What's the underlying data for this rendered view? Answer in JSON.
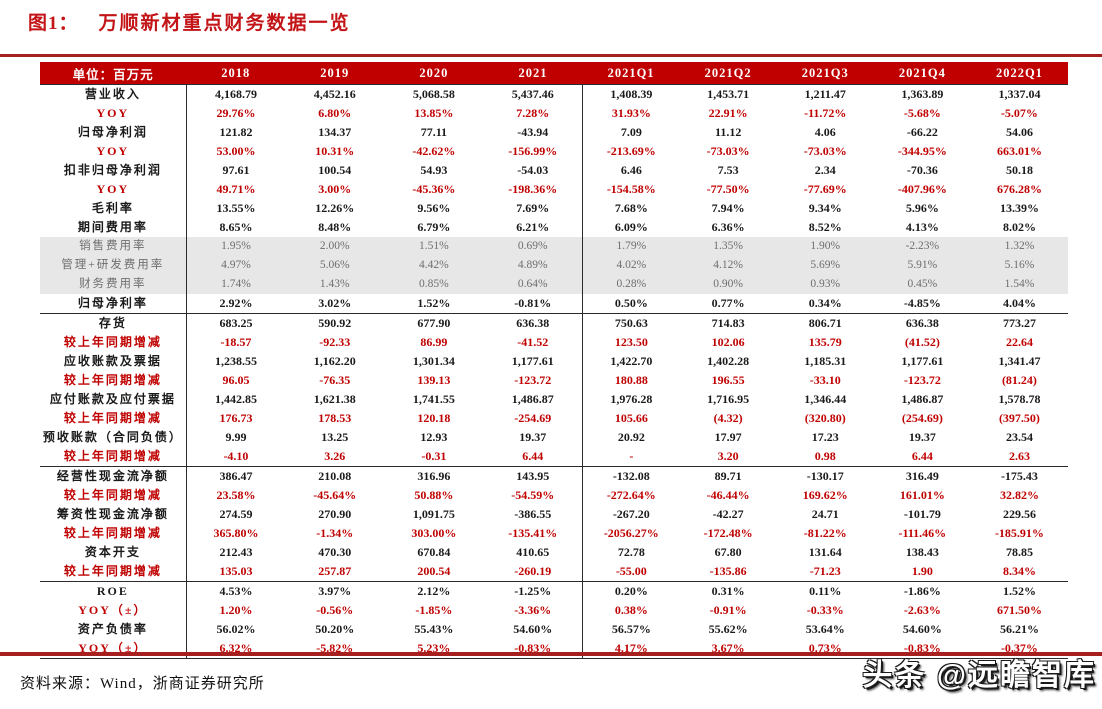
{
  "title": {
    "prefix": "图1：",
    "text": "万顺新材重点财务数据一览"
  },
  "colors": {
    "accent_red": "#c00000",
    "rule_red": "#a6201f",
    "gray_row_bg": "#e7e7e7",
    "gray_text": "#6e6e6e",
    "black_text": "#1a1a1a"
  },
  "table": {
    "unit_label": "单位：百万元",
    "columns": [
      "2018",
      "2019",
      "2020",
      "2021",
      "2021Q1",
      "2021Q2",
      "2021Q3",
      "2021Q4",
      "2022Q1"
    ],
    "rows": [
      {
        "label": "营业收入",
        "style": "black",
        "values": [
          "4,168.79",
          "4,452.16",
          "5,068.58",
          "5,437.46",
          "1,408.39",
          "1,453.71",
          "1,211.47",
          "1,363.89",
          "1,337.04"
        ]
      },
      {
        "label": "YOY",
        "style": "red",
        "values": [
          "29.76%",
          "6.80%",
          "13.85%",
          "7.28%",
          "31.93%",
          "22.91%",
          "-11.72%",
          "-5.68%",
          "-5.07%"
        ]
      },
      {
        "label": "归母净利润",
        "style": "black",
        "values": [
          "121.82",
          "134.37",
          "77.11",
          "-43.94",
          "7.09",
          "11.12",
          "4.06",
          "-66.22",
          "54.06"
        ]
      },
      {
        "label": "YOY",
        "style": "red",
        "values": [
          "53.00%",
          "10.31%",
          "-42.62%",
          "-156.99%",
          "-213.69%",
          "-73.03%",
          "-73.03%",
          "-344.95%",
          "663.01%"
        ]
      },
      {
        "label": "扣非归母净利润",
        "style": "black",
        "values": [
          "97.61",
          "100.54",
          "54.93",
          "-54.03",
          "6.46",
          "7.53",
          "2.34",
          "-70.36",
          "50.18"
        ]
      },
      {
        "label": "YOY",
        "style": "red",
        "values": [
          "49.71%",
          "3.00%",
          "-45.36%",
          "-198.36%",
          "-154.58%",
          "-77.50%",
          "-77.69%",
          "-407.96%",
          "676.28%"
        ]
      },
      {
        "label": "毛利率",
        "style": "black",
        "values": [
          "13.55%",
          "12.26%",
          "9.56%",
          "7.69%",
          "7.68%",
          "7.94%",
          "9.34%",
          "5.96%",
          "13.39%"
        ]
      },
      {
        "label": "期间费用率",
        "style": "black",
        "values": [
          "8.65%",
          "8.48%",
          "6.79%",
          "6.21%",
          "6.09%",
          "6.36%",
          "8.52%",
          "4.13%",
          "8.02%"
        ]
      },
      {
        "label": "销售费用率",
        "style": "gray",
        "values": [
          "1.95%",
          "2.00%",
          "1.51%",
          "0.69%",
          "1.79%",
          "1.35%",
          "1.90%",
          "-2.23%",
          "1.32%"
        ]
      },
      {
        "label": "管理+研发费用率",
        "style": "gray",
        "values": [
          "4.97%",
          "5.06%",
          "4.42%",
          "4.89%",
          "4.02%",
          "4.12%",
          "5.69%",
          "5.91%",
          "5.16%"
        ]
      },
      {
        "label": "财务费用率",
        "style": "gray",
        "values": [
          "1.74%",
          "1.43%",
          "0.85%",
          "0.64%",
          "0.28%",
          "0.90%",
          "0.93%",
          "0.45%",
          "1.54%"
        ]
      },
      {
        "label": "归母净利率",
        "style": "black",
        "sep_after": true,
        "values": [
          "2.92%",
          "3.02%",
          "1.52%",
          "-0.81%",
          "0.50%",
          "0.77%",
          "0.34%",
          "-4.85%",
          "4.04%"
        ]
      },
      {
        "label": "存货",
        "style": "black",
        "values": [
          "683.25",
          "590.92",
          "677.90",
          "636.38",
          "750.63",
          "714.83",
          "806.71",
          "636.38",
          "773.27"
        ]
      },
      {
        "label": "较上年同期增减",
        "style": "red",
        "values": [
          "-18.57",
          "-92.33",
          "86.99",
          "-41.52",
          "123.50",
          "102.06",
          "135.79",
          "(41.52)",
          "22.64"
        ]
      },
      {
        "label": "应收账款及票据",
        "style": "black",
        "values": [
          "1,238.55",
          "1,162.20",
          "1,301.34",
          "1,177.61",
          "1,422.70",
          "1,402.28",
          "1,185.31",
          "1,177.61",
          "1,341.47"
        ]
      },
      {
        "label": "较上年同期增减",
        "style": "red",
        "values": [
          "96.05",
          "-76.35",
          "139.13",
          "-123.72",
          "180.88",
          "196.55",
          "-33.10",
          "-123.72",
          "(81.24)"
        ]
      },
      {
        "label": "应付账款及应付票据",
        "style": "black",
        "values": [
          "1,442.85",
          "1,621.38",
          "1,741.55",
          "1,486.87",
          "1,976.28",
          "1,716.95",
          "1,346.44",
          "1,486.87",
          "1,578.78"
        ]
      },
      {
        "label": "较上年同期增减",
        "style": "red",
        "values": [
          "176.73",
          "178.53",
          "120.18",
          "-254.69",
          "105.66",
          "(4.32)",
          "(320.80)",
          "(254.69)",
          "(397.50)"
        ]
      },
      {
        "label": "预收账款（合同负债）",
        "style": "black",
        "values": [
          "9.99",
          "13.25",
          "12.93",
          "19.37",
          "20.92",
          "17.97",
          "17.23",
          "19.37",
          "23.54"
        ]
      },
      {
        "label": "较上年同期增减",
        "style": "red",
        "sep_after": true,
        "values": [
          "-4.10",
          "3.26",
          "-0.31",
          "6.44",
          "-",
          "3.20",
          "0.98",
          "6.44",
          "2.63"
        ]
      },
      {
        "label": "经营性现金流净额",
        "style": "black",
        "values": [
          "386.47",
          "210.08",
          "316.96",
          "143.95",
          "-132.08",
          "89.71",
          "-130.17",
          "316.49",
          "-175.43"
        ]
      },
      {
        "label": "较上年同期增减",
        "style": "red",
        "values": [
          "23.58%",
          "-45.64%",
          "50.88%",
          "-54.59%",
          "-272.64%",
          "-46.44%",
          "169.62%",
          "161.01%",
          "32.82%"
        ]
      },
      {
        "label": "筹资性现金流净额",
        "style": "black",
        "values": [
          "274.59",
          "270.90",
          "1,091.75",
          "-386.55",
          "-267.20",
          "-42.27",
          "24.71",
          "-101.79",
          "229.56"
        ]
      },
      {
        "label": "较上年同期增减",
        "style": "red",
        "values": [
          "365.80%",
          "-1.34%",
          "303.00%",
          "-135.41%",
          "-2056.27%",
          "-172.48%",
          "-81.22%",
          "-111.46%",
          "-185.91%"
        ]
      },
      {
        "label": "资本开支",
        "style": "black",
        "values": [
          "212.43",
          "470.30",
          "670.84",
          "410.65",
          "72.78",
          "67.80",
          "131.64",
          "138.43",
          "78.85"
        ]
      },
      {
        "label": "较上年同期增减",
        "style": "red",
        "sep_after": true,
        "values": [
          "135.03",
          "257.87",
          "200.54",
          "-260.19",
          "-55.00",
          "-135.86",
          "-71.23",
          "1.90",
          "8.34%"
        ]
      },
      {
        "label": "ROE",
        "style": "black",
        "values": [
          "4.53%",
          "3.97%",
          "2.12%",
          "-1.25%",
          "0.20%",
          "0.31%",
          "0.11%",
          "-1.86%",
          "1.52%"
        ]
      },
      {
        "label": "YOY（±）",
        "style": "red",
        "values": [
          "1.20%",
          "-0.56%",
          "-1.85%",
          "-3.36%",
          "0.38%",
          "-0.91%",
          "-0.33%",
          "-2.63%",
          "671.50%"
        ]
      },
      {
        "label": "资产负债率",
        "style": "black",
        "values": [
          "56.02%",
          "50.20%",
          "55.43%",
          "54.60%",
          "56.57%",
          "55.62%",
          "53.64%",
          "54.60%",
          "56.21%"
        ]
      },
      {
        "label": "YOY（±）",
        "style": "red",
        "values": [
          "6.32%",
          "-5.82%",
          "5.23%",
          "-0.83%",
          "4.17%",
          "3.67%",
          "0.73%",
          "-0.83%",
          "-0.37%"
        ]
      }
    ]
  },
  "footer": {
    "source": "资料来源：Wind，浙商证券研究所"
  },
  "watermark": "头条 @远瞻智库"
}
